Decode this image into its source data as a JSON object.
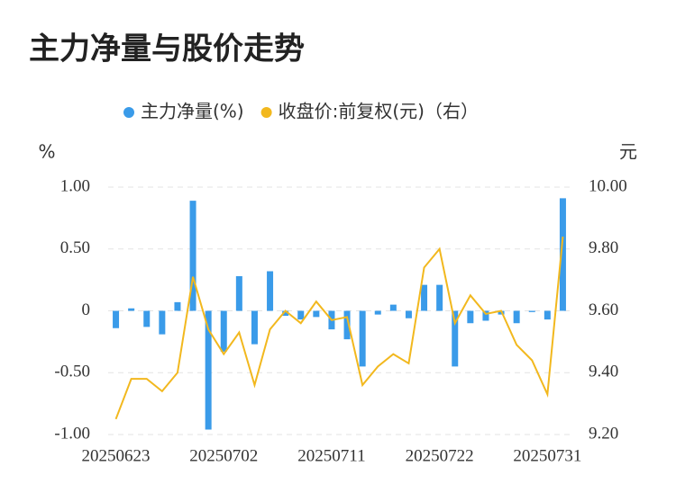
{
  "chart_data": {
    "type": "bar_line",
    "title": "主力净量与股价走势",
    "ylabel": "%",
    "y2label": "元",
    "categories": [
      "20250623",
      null,
      null,
      null,
      null,
      null,
      null,
      "20250702",
      null,
      null,
      null,
      null,
      null,
      null,
      "20250711",
      null,
      null,
      null,
      null,
      null,
      null,
      "20250722",
      null,
      null,
      null,
      null,
      null,
      null,
      "20250731",
      null
    ],
    "series": [
      {
        "name": "主力净量(%)",
        "type": "bar",
        "color": "#3a9be9",
        "axis": "y",
        "values": [
          -0.14,
          0.02,
          -0.13,
          -0.19,
          0.07,
          0.89,
          -0.96,
          -0.33,
          0.28,
          -0.27,
          0.32,
          -0.04,
          -0.07,
          -0.05,
          -0.15,
          -0.23,
          -0.45,
          -0.03,
          0.05,
          -0.06,
          0.21,
          0.21,
          -0.45,
          -0.1,
          -0.08,
          -0.03,
          -0.1,
          -0.01,
          -0.07,
          0.91
        ]
      },
      {
        "name": "收盘价:前复权(元)（右）",
        "type": "line",
        "color": "#f2b81e",
        "axis": "y2",
        "values": [
          9.25,
          9.38,
          9.38,
          9.34,
          9.4,
          9.71,
          9.54,
          9.46,
          9.53,
          9.36,
          9.54,
          9.6,
          9.56,
          9.63,
          9.57,
          9.58,
          9.36,
          9.42,
          9.46,
          9.43,
          9.74,
          9.8,
          9.56,
          9.65,
          9.59,
          9.6,
          9.49,
          9.44,
          9.33,
          9.84
        ]
      }
    ],
    "ylim": [
      -1,
      1
    ],
    "yticks": [
      {
        "value": 1,
        "label": "1.00"
      },
      {
        "value": 0.5,
        "label": "0.50"
      },
      0,
      {
        "value": -0.5,
        "label": "-0.50"
      },
      {
        "value": -1,
        "label": "-1.00"
      }
    ],
    "y2lim": [
      9.2,
      10
    ],
    "y2ticks": [
      {
        "value": 10,
        "label": "10.00"
      },
      {
        "value": 9.8,
        "label": "9.80"
      },
      {
        "value": 9.6,
        "label": "9.60"
      },
      {
        "value": 9.4,
        "label": "9.40"
      },
      {
        "value": 9.2,
        "label": "9.20"
      }
    ],
    "grid": true,
    "legend": "top"
  }
}
